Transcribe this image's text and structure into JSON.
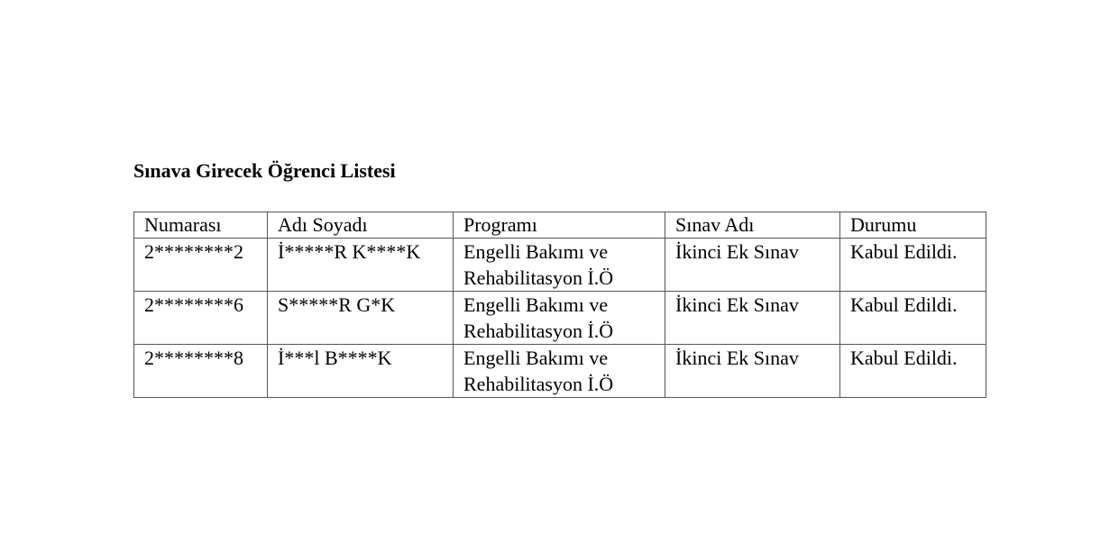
{
  "document": {
    "title": "Sınava Girecek Öğrenci Listesi",
    "table": {
      "headers": [
        "Numarası",
        "Adı Soyadı",
        "Programı",
        "Sınav Adı",
        "Durumu"
      ],
      "rows": [
        [
          "2********2",
          "İ*****R K****K",
          "Engelli Bakımı ve Rehabilitasyon İ.Ö",
          "İkinci Ek Sınav",
          "Kabul Edildi."
        ],
        [
          "2********6",
          "S*****R G*K",
          "Engelli Bakımı ve Rehabilitasyon İ.Ö",
          "İkinci Ek Sınav",
          "Kabul Edildi."
        ],
        [
          "2********8",
          "İ***l B****K",
          "Engelli Bakımı ve Rehabilitasyon İ.Ö",
          "İkinci Ek Sınav",
          "Kabul Edildi."
        ]
      ]
    }
  }
}
